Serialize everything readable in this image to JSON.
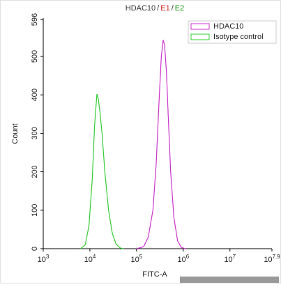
{
  "chart_data": {
    "type": "line",
    "title_parts": [
      "HDAC10",
      "/",
      "E1",
      "/",
      "E2"
    ],
    "title_colors": [
      "#333333",
      "#333333",
      "#d42020",
      "#333333",
      "#1a9a1a"
    ],
    "xlabel": "FITC-A",
    "ylabel": "Count",
    "xscale": "log",
    "xlim": [
      1000,
      79432823
    ],
    "xticks": [
      {
        "value": 1000,
        "label": "10",
        "exponent": "3"
      },
      {
        "value": 10000,
        "label": "10",
        "exponent": "4"
      },
      {
        "value": 100000,
        "label": "10",
        "exponent": "5"
      },
      {
        "value": 1000000,
        "label": "10",
        "exponent": "6"
      },
      {
        "value": 10000000,
        "label": "10",
        "exponent": "7"
      },
      {
        "value": 79432823,
        "label": "10",
        "exponent": "7.9"
      }
    ],
    "ylim": [
      0,
      596
    ],
    "yticks": [
      0,
      100,
      200,
      300,
      400,
      500,
      596
    ],
    "legend": "upper right",
    "series": [
      {
        "name": "HDAC10",
        "color": "#cc33cc",
        "x": [
          100000,
          141254,
          177828,
          223872,
          263027,
          301995,
          338844,
          371535,
          398107,
          436516,
          478630,
          537032,
          630957,
          758578,
          912011,
          1122018
        ],
        "values": [
          0,
          5,
          30,
          100,
          220,
          380,
          500,
          543,
          530,
          460,
          340,
          200,
          80,
          20,
          3,
          0
        ]
      },
      {
        "name": "Isotype control",
        "color": "#33cc33",
        "x": [
          6310,
          7943,
          9550,
          11220,
          12589,
          14125,
          15136,
          16596,
          18197,
          20893,
          25119,
          30200,
          36308,
          44668,
          52481
        ],
        "values": [
          0,
          10,
          60,
          180,
          320,
          402,
          390,
          350,
          300,
          200,
          100,
          40,
          12,
          2,
          0
        ]
      }
    ]
  }
}
